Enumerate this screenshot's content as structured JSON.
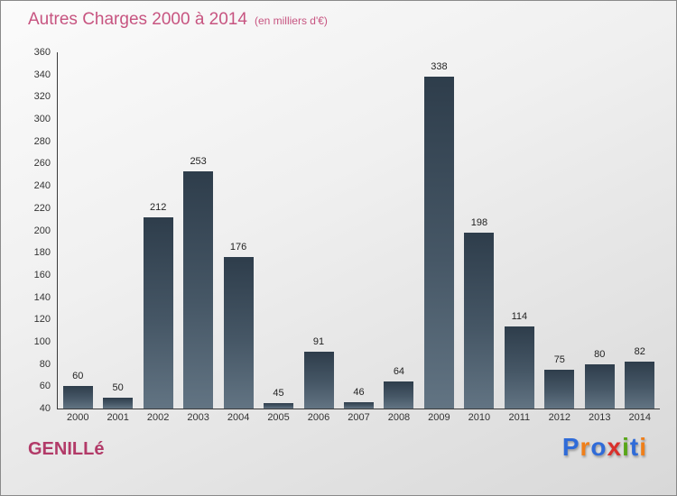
{
  "chart": {
    "title": "Autres Charges 2000 à 2014",
    "subtitle": "(en milliers d'€)"
  },
  "chart_data": {
    "type": "bar",
    "title": "Autres Charges 2000 à 2014",
    "subtitle": "(en milliers d'€)",
    "categories": [
      "2000",
      "2001",
      "2002",
      "2003",
      "2004",
      "2005",
      "2006",
      "2007",
      "2008",
      "2009",
      "2010",
      "2011",
      "2012",
      "2013",
      "2014"
    ],
    "values": [
      60,
      50,
      212,
      253,
      176,
      45,
      91,
      46,
      64,
      338,
      198,
      114,
      75,
      80,
      82
    ],
    "xlabel": "",
    "ylabel": "",
    "ylim": [
      40,
      360
    ],
    "ytick_step": 20,
    "grid": false,
    "legend": "none",
    "bar_color_top": "#2e3d4b",
    "bar_color_bottom": "#627483"
  },
  "footer": {
    "place": "GENILLé",
    "logo_letters": [
      {
        "ch": "P",
        "color": "#2f6bd8"
      },
      {
        "ch": "r",
        "color": "#ef7f1a"
      },
      {
        "ch": "o",
        "color": "#2f6bd8"
      },
      {
        "ch": "x",
        "color": "#d9302c"
      },
      {
        "ch": "i",
        "color": "#58a618"
      },
      {
        "ch": "t",
        "color": "#2f6bd8"
      },
      {
        "ch": "i",
        "color": "#ef7f1a"
      }
    ]
  },
  "colors": {
    "title": "#c75480",
    "place": "#b23a68",
    "axis": "#3a3a3a",
    "tick_text": "#333333",
    "value_text": "#222222"
  }
}
